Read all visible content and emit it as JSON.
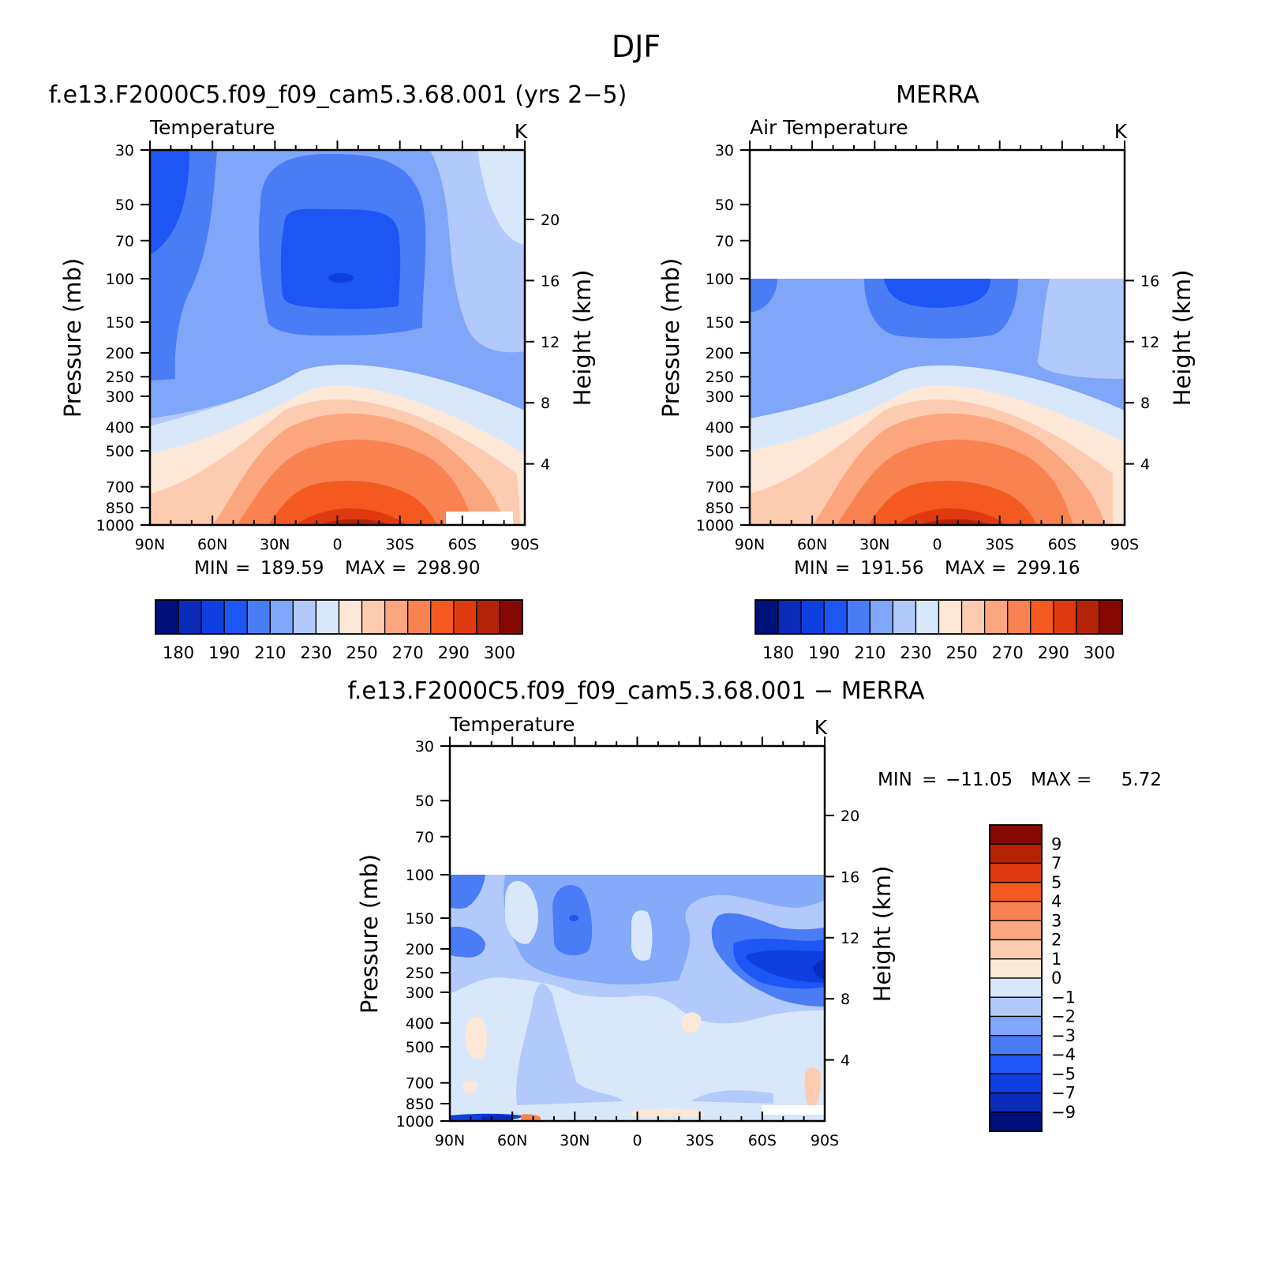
{
  "figure_title": "DJF",
  "chart_data": [
    {
      "id": "model",
      "type": "heatmap",
      "title": "f.e13.F2000C5.f09_f09_cam5.3.68.001 (yrs 2−5)",
      "subtitle_left": "Temperature",
      "units": "K",
      "xlabel": "",
      "ylabel": "Pressure (mb)",
      "ylabel_right": "Height (km)",
      "x_ticks": [
        "90N",
        "60N",
        "30N",
        "0",
        "30S",
        "60S",
        "90S"
      ],
      "y_ticks": [
        "30",
        "50",
        "70",
        "100",
        "150",
        "200",
        "250",
        "300",
        "400",
        "500",
        "700",
        "850",
        "1000"
      ],
      "height_ticks": [
        "4",
        "8",
        "12",
        "16",
        "20"
      ],
      "stats": {
        "min_label": "MIN",
        "min": "189.59",
        "max_label": "MAX",
        "max": "298.90"
      },
      "data_top_mb": 30,
      "colorbar": {
        "orientation": "horizontal",
        "labels": [
          "180",
          "190",
          "210",
          "230",
          "250",
          "270",
          "290",
          "300"
        ]
      }
    },
    {
      "id": "obs",
      "type": "heatmap",
      "title": "MERRA",
      "subtitle_left": "Air Temperature",
      "units": "K",
      "xlabel": "",
      "ylabel": "Pressure (mb)",
      "ylabel_right": "Height (km)",
      "x_ticks": [
        "90N",
        "60N",
        "30N",
        "0",
        "30S",
        "60S",
        "90S"
      ],
      "y_ticks": [
        "30",
        "50",
        "70",
        "100",
        "150",
        "200",
        "250",
        "300",
        "400",
        "500",
        "700",
        "850",
        "1000"
      ],
      "height_ticks": [
        "4",
        "8",
        "12",
        "16"
      ],
      "stats": {
        "min_label": "MIN",
        "min": "191.56",
        "max_label": "MAX",
        "max": "299.16"
      },
      "data_top_mb": 100,
      "colorbar": {
        "orientation": "horizontal",
        "labels": [
          "180",
          "190",
          "210",
          "230",
          "250",
          "270",
          "290",
          "300"
        ]
      }
    },
    {
      "id": "diff",
      "type": "heatmap",
      "title": "f.e13.F2000C5.f09_f09_cam5.3.68.001 − MERRA",
      "subtitle_left": "Temperature",
      "units": "K",
      "xlabel": "",
      "ylabel": "Pressure (mb)",
      "ylabel_right": "Height (km)",
      "x_ticks": [
        "90N",
        "60N",
        "30N",
        "0",
        "30S",
        "60S",
        "90S"
      ],
      "y_ticks": [
        "30",
        "50",
        "70",
        "100",
        "150",
        "200",
        "250",
        "300",
        "400",
        "500",
        "700",
        "850",
        "1000"
      ],
      "height_ticks": [
        "4",
        "8",
        "12",
        "16",
        "20"
      ],
      "stats": {
        "min_label": "MIN",
        "min": "−11.05",
        "max_label": "MAX",
        "max": "5.72"
      },
      "data_top_mb": 100,
      "colorbar": {
        "orientation": "vertical",
        "labels": [
          "9",
          "7",
          "5",
          "4",
          "3",
          "2",
          "1",
          "0",
          "−1",
          "−2",
          "−3",
          "−4",
          "−5",
          "−7",
          "−9"
        ]
      }
    }
  ],
  "colors": {
    "abs_scale": [
      "#00107a",
      "#0a2cb8",
      "#0f3fe0",
      "#1e55f5",
      "#4a7cf5",
      "#7fa6f9",
      "#b2c9fb",
      "#d9e7fb",
      "#fde8d8",
      "#fdccb0",
      "#fca680",
      "#f98350",
      "#f45a20",
      "#df3a0f",
      "#b52307",
      "#850803"
    ],
    "diff_scale": [
      "#850803",
      "#b52307",
      "#df3a0f",
      "#f45a20",
      "#f98350",
      "#fca680",
      "#fdccb0",
      "#fde8d8",
      "#d9e7fb",
      "#b2c9fb",
      "#7fa6f9",
      "#4a7cf5",
      "#1e55f5",
      "#0f3fe0",
      "#0a2cb8",
      "#00107a"
    ]
  }
}
